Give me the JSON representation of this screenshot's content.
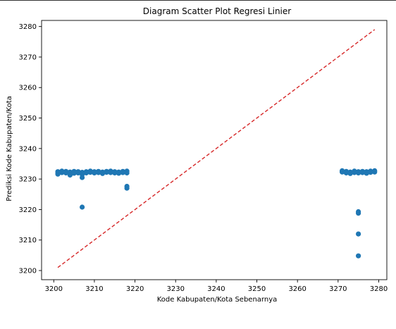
{
  "chart_data": {
    "type": "scatter",
    "title": "Diagram Scatter Plot Regresi Linier",
    "xlabel": "Kode Kabupaten/Kota Sebenarnya",
    "ylabel": "Prediksi Kode Kabupaten/Kota",
    "xlim": [
      3197,
      3282
    ],
    "ylim": [
      3197,
      3282
    ],
    "xticks": [
      "3200",
      "3210",
      "3220",
      "3230",
      "3240",
      "3250",
      "3260",
      "3270",
      "3280"
    ],
    "yticks": [
      "3200",
      "3210",
      "3220",
      "3230",
      "3240",
      "3250",
      "3260",
      "3270",
      "3280"
    ],
    "grid": false,
    "point_color": "#1f77b4",
    "line_color": "#d62728",
    "ideal_line": {
      "x": [
        3201,
        3279
      ],
      "y": [
        3201,
        3279
      ],
      "style": "dashed"
    },
    "points": [
      {
        "x": 3201,
        "y": 3232.4
      },
      {
        "x": 3201,
        "y": 3232.0
      },
      {
        "x": 3201,
        "y": 3231.6
      },
      {
        "x": 3202,
        "y": 3232.6
      },
      {
        "x": 3202,
        "y": 3232.1
      },
      {
        "x": 3203,
        "y": 3232.5
      },
      {
        "x": 3203,
        "y": 3232.0
      },
      {
        "x": 3204,
        "y": 3232.3
      },
      {
        "x": 3204,
        "y": 3231.3
      },
      {
        "x": 3205,
        "y": 3232.5
      },
      {
        "x": 3205,
        "y": 3231.9
      },
      {
        "x": 3206,
        "y": 3232.4
      },
      {
        "x": 3206,
        "y": 3232.0
      },
      {
        "x": 3207,
        "y": 3232.2
      },
      {
        "x": 3207,
        "y": 3231.5
      },
      {
        "x": 3207,
        "y": 3230.5
      },
      {
        "x": 3207,
        "y": 3220.8
      },
      {
        "x": 3208,
        "y": 3232.4
      },
      {
        "x": 3208,
        "y": 3232.0
      },
      {
        "x": 3209,
        "y": 3232.6
      },
      {
        "x": 3209,
        "y": 3232.2
      },
      {
        "x": 3210,
        "y": 3232.4
      },
      {
        "x": 3210,
        "y": 3232.0
      },
      {
        "x": 3211,
        "y": 3232.5
      },
      {
        "x": 3211,
        "y": 3232.1
      },
      {
        "x": 3212,
        "y": 3232.3
      },
      {
        "x": 3212,
        "y": 3231.8
      },
      {
        "x": 3213,
        "y": 3232.5
      },
      {
        "x": 3213,
        "y": 3232.2
      },
      {
        "x": 3214,
        "y": 3232.6
      },
      {
        "x": 3214,
        "y": 3232.1
      },
      {
        "x": 3215,
        "y": 3232.4
      },
      {
        "x": 3215,
        "y": 3232.0
      },
      {
        "x": 3216,
        "y": 3232.3
      },
      {
        "x": 3216,
        "y": 3231.9
      },
      {
        "x": 3217,
        "y": 3232.5
      },
      {
        "x": 3217,
        "y": 3232.1
      },
      {
        "x": 3218,
        "y": 3232.6
      },
      {
        "x": 3218,
        "y": 3232.0
      },
      {
        "x": 3218,
        "y": 3227.6
      },
      {
        "x": 3218,
        "y": 3227.0
      },
      {
        "x": 3271,
        "y": 3232.7
      },
      {
        "x": 3271,
        "y": 3232.3
      },
      {
        "x": 3272,
        "y": 3232.5
      },
      {
        "x": 3272,
        "y": 3232.0
      },
      {
        "x": 3273,
        "y": 3232.3
      },
      {
        "x": 3273,
        "y": 3231.8
      },
      {
        "x": 3274,
        "y": 3232.6
      },
      {
        "x": 3274,
        "y": 3232.1
      },
      {
        "x": 3275,
        "y": 3232.4
      },
      {
        "x": 3275,
        "y": 3232.0
      },
      {
        "x": 3275,
        "y": 3219.3
      },
      {
        "x": 3275,
        "y": 3218.8
      },
      {
        "x": 3275,
        "y": 3212.0
      },
      {
        "x": 3275,
        "y": 3204.8
      },
      {
        "x": 3276,
        "y": 3232.5
      },
      {
        "x": 3276,
        "y": 3232.1
      },
      {
        "x": 3277,
        "y": 3232.4
      },
      {
        "x": 3277,
        "y": 3231.9
      },
      {
        "x": 3278,
        "y": 3232.6
      },
      {
        "x": 3278,
        "y": 3232.2
      },
      {
        "x": 3279,
        "y": 3232.7
      },
      {
        "x": 3279,
        "y": 3232.3
      }
    ]
  }
}
